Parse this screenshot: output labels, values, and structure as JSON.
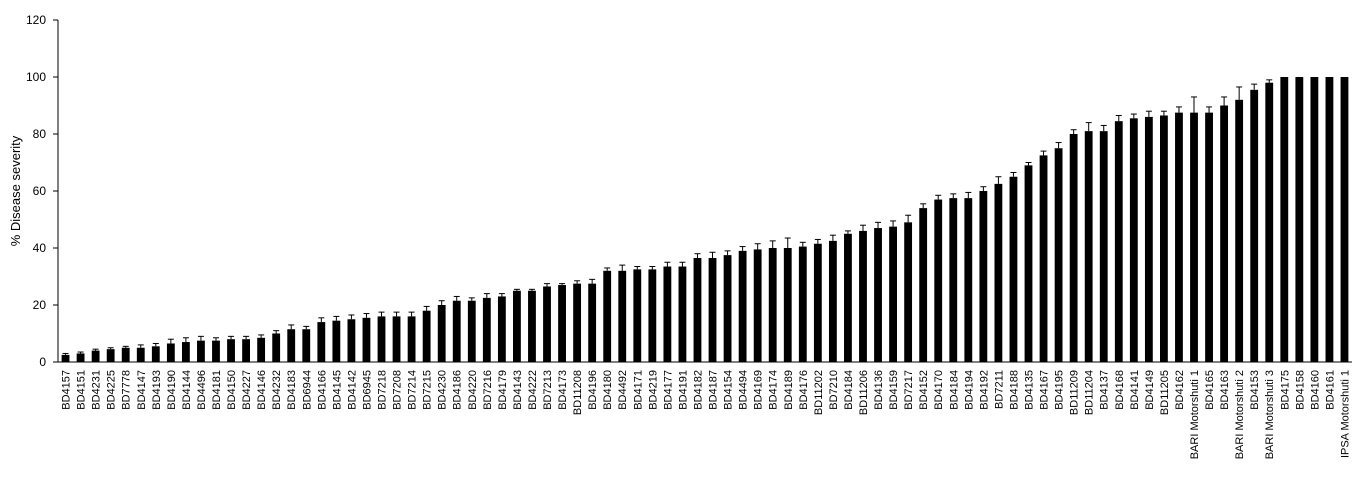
{
  "chart_data": {
    "type": "bar",
    "title": "",
    "xlabel": "",
    "ylabel": "% Disease severity",
    "ylim": [
      0,
      120
    ],
    "yticks": [
      0,
      20,
      40,
      60,
      80,
      100,
      120
    ],
    "grid": false,
    "bar_color": "#000000",
    "categories": [
      "BD4157",
      "BD4151",
      "BD4231",
      "BD4225",
      "BD7778",
      "BD4147",
      "BD4193",
      "BD4190",
      "BD4144",
      "BD4496",
      "BD4181",
      "BD4150",
      "BD4227",
      "BD4146",
      "BD4232",
      "BD4183",
      "BD6944",
      "BD4166",
      "BD4145",
      "BD4142",
      "BD6945",
      "BD7218",
      "BD7208",
      "BD7214",
      "BD7215",
      "BD4230",
      "BD4186",
      "BD4220",
      "BD7216",
      "BD4179",
      "BD4143",
      "BD4222",
      "BD7213",
      "BD4173",
      "BD11208",
      "BD4196",
      "BD4180",
      "BD4492",
      "BD4171",
      "BD4219",
      "BD4177",
      "BD4191",
      "BD4182",
      "BD4187",
      "BD4154",
      "BD4494",
      "BD4169",
      "BD4174",
      "BD4189",
      "BD4176",
      "BD11202",
      "BD7210",
      "BD4184",
      "BD11206",
      "BD4136",
      "BD4159",
      "BD7217",
      "BD4152",
      "BD4170",
      "BD4184",
      "BD4194",
      "BD4192",
      "BD7211",
      "BD4188",
      "BD4135",
      "BD4167",
      "BD4195",
      "BD11209",
      "BD11204",
      "BD4137",
      "BD4168",
      "BD4141",
      "BD4149",
      "BD11205",
      "BD4162",
      "BARI Motorshuti 1",
      "BD4165",
      "BD4163",
      "BARI Motorshuti 2",
      "BD4153",
      "BARI Motorshuti 3",
      "BD4175",
      "BD4158",
      "BD4160",
      "BD4161",
      "IPSA Motorshuti 1"
    ],
    "values": [
      2.5,
      3,
      4,
      4.5,
      5,
      5,
      5.5,
      6.5,
      7,
      7.5,
      7.5,
      8,
      8,
      8.5,
      10,
      11.5,
      11.5,
      14,
      14.5,
      15,
      15.5,
      16,
      16,
      16,
      18,
      20,
      21.5,
      21.5,
      22.5,
      23,
      25,
      25,
      26.5,
      27,
      27.5,
      27.5,
      32,
      32,
      32.5,
      32.5,
      33.5,
      33.5,
      36.5,
      36.5,
      37.5,
      39,
      39.5,
      40,
      40,
      40.5,
      41.5,
      42.5,
      45,
      46,
      47,
      47.5,
      49,
      54,
      57,
      57.5,
      57.5,
      60,
      62.5,
      65,
      69,
      72.5,
      75,
      80,
      81,
      81,
      84.5,
      85.5,
      86,
      86.5,
      87.5,
      87.5,
      87.5,
      90,
      92,
      95.5,
      98,
      100,
      100,
      100,
      100,
      100
    ],
    "errors": [
      0.5,
      0.5,
      0.5,
      0.5,
      0.5,
      1,
      1,
      1.5,
      1.5,
      1.5,
      1,
      1,
      1,
      1,
      1,
      1.5,
      1,
      1.5,
      1.5,
      1.5,
      1.5,
      1.5,
      1.5,
      1.5,
      1.5,
      1.5,
      1.5,
      1,
      1.5,
      1,
      0.5,
      0.5,
      1,
      0.5,
      1,
      1.5,
      1,
      2,
      1,
      1,
      1.5,
      1.5,
      1.5,
      2,
      1.5,
      1.5,
      2,
      2.5,
      3.5,
      1.5,
      1.5,
      2,
      1,
      2,
      2,
      2,
      2.5,
      1.5,
      1.5,
      1.5,
      2,
      1.5,
      2.5,
      1.5,
      1,
      1.5,
      2,
      1.5,
      3,
      2,
      2,
      1.5,
      2,
      1.5,
      2,
      5.5,
      2,
      3,
      4.5,
      2,
      1,
      0,
      0,
      0,
      0,
      0
    ]
  }
}
